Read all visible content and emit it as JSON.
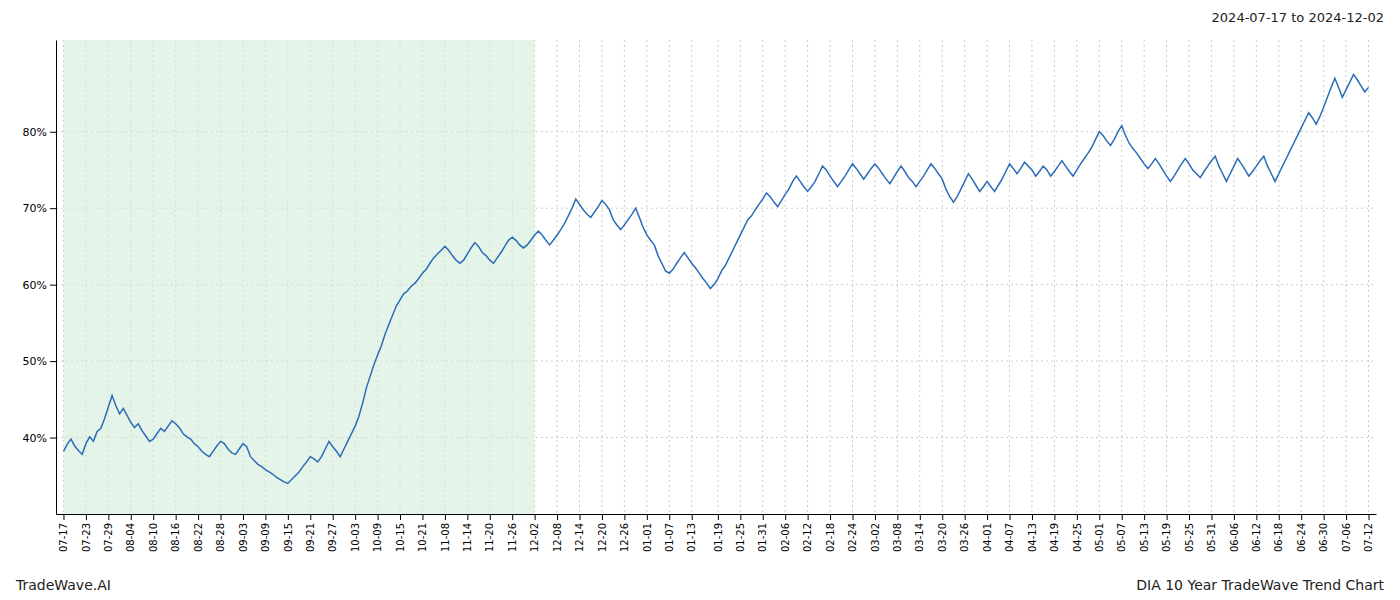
{
  "chart_data": {
    "type": "line",
    "title": "DIA 10 Year TradeWave Trend Chart",
    "subtitle": "2024-07-17 to 2024-12-02",
    "annotations": [
      "TradeWave.AI"
    ],
    "color": "#2b6cb8",
    "grid": true,
    "ylim": [
      30,
      92
    ],
    "yticks": [
      {
        "value": 40,
        "label": "40%"
      },
      {
        "value": 50,
        "label": "50%"
      },
      {
        "value": 60,
        "label": "60%"
      },
      {
        "value": 70,
        "label": "70%"
      },
      {
        "value": 80,
        "label": "80%"
      }
    ],
    "shaded": {
      "from": "07-17",
      "to": "12-02",
      "color": "#d4edda"
    },
    "categories": [
      "07-17",
      null,
      null,
      null,
      null,
      null,
      "07-23",
      null,
      null,
      null,
      null,
      null,
      "07-29",
      null,
      null,
      null,
      null,
      null,
      "08-04",
      null,
      null,
      null,
      null,
      null,
      "08-10",
      null,
      null,
      null,
      null,
      null,
      "08-16",
      null,
      null,
      null,
      null,
      null,
      "08-22",
      null,
      null,
      null,
      null,
      null,
      "08-28",
      null,
      null,
      null,
      null,
      null,
      "09-03",
      null,
      null,
      null,
      null,
      null,
      "09-09",
      null,
      null,
      null,
      null,
      null,
      "09-15",
      null,
      null,
      null,
      null,
      null,
      "09-21",
      null,
      null,
      null,
      null,
      null,
      "09-27",
      null,
      null,
      null,
      null,
      null,
      "10-03",
      null,
      null,
      null,
      null,
      null,
      "10-09",
      null,
      null,
      null,
      null,
      null,
      "10-15",
      null,
      null,
      null,
      null,
      null,
      "10-21",
      null,
      null,
      null,
      null,
      null,
      "11-08",
      null,
      null,
      null,
      null,
      null,
      "11-14",
      null,
      null,
      null,
      null,
      null,
      "11-20",
      null,
      null,
      null,
      null,
      null,
      "11-26",
      null,
      null,
      null,
      null,
      null,
      "12-02",
      null,
      null,
      null,
      null,
      null,
      "12-08",
      null,
      null,
      null,
      null,
      null,
      "12-14",
      null,
      null,
      null,
      null,
      null,
      "12-20",
      null,
      null,
      null,
      null,
      null,
      "12-26",
      null,
      null,
      null,
      null,
      null,
      "01-01",
      null,
      null,
      null,
      null,
      null,
      "01-07",
      null,
      null,
      null,
      null,
      null,
      "01-13",
      null,
      null,
      null,
      null,
      null,
      null,
      "01-19",
      null,
      null,
      null,
      null,
      null,
      "01-25",
      null,
      null,
      null,
      null,
      null,
      "01-31",
      null,
      null,
      null,
      null,
      null,
      "02-06",
      null,
      null,
      null,
      null,
      null,
      "02-12",
      null,
      null,
      null,
      null,
      null,
      "02-18",
      null,
      null,
      null,
      null,
      null,
      "02-24",
      null,
      null,
      null,
      null,
      null,
      "03-02",
      null,
      null,
      null,
      null,
      null,
      "03-08",
      null,
      null,
      null,
      null,
      null,
      "03-14",
      null,
      null,
      null,
      null,
      null,
      "03-20",
      null,
      null,
      null,
      null,
      null,
      "03-26",
      null,
      null,
      null,
      null,
      null,
      "04-01",
      null,
      null,
      null,
      null,
      null,
      "04-07",
      null,
      null,
      null,
      null,
      null,
      "04-13",
      null,
      null,
      null,
      null,
      null,
      "04-19",
      null,
      null,
      null,
      null,
      null,
      "04-25",
      null,
      null,
      null,
      null,
      null,
      "05-01",
      null,
      null,
      null,
      null,
      null,
      "05-07",
      null,
      null,
      null,
      null,
      null,
      "05-13",
      null,
      null,
      null,
      null,
      null,
      "05-19",
      null,
      null,
      null,
      null,
      null,
      "05-25",
      null,
      null,
      null,
      null,
      null,
      "05-31",
      null,
      null,
      null,
      null,
      null,
      "06-06",
      null,
      null,
      null,
      null,
      null,
      "06-12",
      null,
      null,
      null,
      null,
      null,
      "06-18",
      null,
      null,
      null,
      null,
      null,
      "06-24",
      null,
      null,
      null,
      null,
      null,
      "06-30",
      null,
      null,
      null,
      null,
      null,
      "07-06",
      null,
      null,
      null,
      null,
      null,
      "07-12"
    ],
    "values": [
      38.2,
      39.1,
      39.8,
      38.9,
      38.3,
      37.8,
      39.2,
      40.1,
      39.5,
      40.8,
      41.2,
      42.5,
      44.0,
      45.5,
      44.2,
      43.1,
      43.8,
      42.9,
      42.0,
      41.3,
      41.8,
      40.9,
      40.2,
      39.5,
      39.8,
      40.5,
      41.2,
      40.8,
      41.5,
      42.2,
      41.8,
      41.3,
      40.5,
      40.1,
      39.8,
      39.2,
      38.8,
      38.2,
      37.8,
      37.5,
      38.2,
      38.9,
      39.5,
      39.2,
      38.5,
      38.0,
      37.8,
      38.5,
      39.2,
      38.8,
      37.5,
      37.0,
      36.5,
      36.2,
      35.8,
      35.5,
      35.2,
      34.8,
      34.5,
      34.2,
      34.0,
      34.5,
      35.0,
      35.5,
      36.2,
      36.8,
      37.5,
      37.2,
      36.8,
      37.5,
      38.5,
      39.5,
      38.8,
      38.2,
      37.5,
      38.5,
      39.5,
      40.5,
      41.5,
      42.8,
      44.5,
      46.5,
      48.0,
      49.5,
      50.8,
      52.0,
      53.5,
      54.8,
      56.0,
      57.2,
      58.0,
      58.8,
      59.2,
      59.8,
      60.2,
      60.8,
      61.5,
      62.0,
      62.8,
      63.5,
      64.0,
      64.5,
      65.0,
      64.5,
      63.8,
      63.2,
      62.8,
      63.2,
      64.0,
      64.8,
      65.5,
      65.0,
      64.2,
      63.8,
      63.2,
      62.8,
      63.5,
      64.2,
      65.0,
      65.8,
      66.2,
      65.8,
      65.2,
      64.8,
      65.2,
      65.8,
      66.5,
      67.0,
      66.5,
      65.8,
      65.2,
      65.8,
      66.5,
      67.2,
      68.0,
      69.0,
      70.0,
      71.2,
      70.5,
      69.8,
      69.2,
      68.8,
      69.5,
      70.2,
      71.0,
      70.5,
      69.8,
      68.5,
      67.8,
      67.2,
      67.8,
      68.5,
      69.2,
      70.0,
      68.8,
      67.5,
      66.5,
      65.8,
      65.2,
      63.8,
      62.8,
      61.8,
      61.5,
      62.0,
      62.8,
      63.5,
      64.2,
      63.5,
      62.8,
      62.2,
      61.5,
      60.8,
      60.2,
      59.5,
      60.0,
      60.8,
      61.8,
      62.5,
      63.5,
      64.5,
      65.5,
      66.5,
      67.5,
      68.5,
      69.0,
      69.8,
      70.5,
      71.2,
      72.0,
      71.5,
      70.8,
      70.2,
      71.0,
      71.8,
      72.5,
      73.5,
      74.2,
      73.5,
      72.8,
      72.2,
      72.8,
      73.5,
      74.5,
      75.5,
      75.0,
      74.2,
      73.5,
      72.8,
      73.5,
      74.2,
      75.0,
      75.8,
      75.2,
      74.5,
      73.8,
      74.5,
      75.2,
      75.8,
      75.2,
      74.5,
      73.8,
      73.2,
      74.0,
      74.8,
      75.5,
      74.8,
      74.0,
      73.5,
      72.8,
      73.5,
      74.2,
      75.0,
      75.8,
      75.2,
      74.5,
      73.8,
      72.5,
      71.5,
      70.8,
      71.5,
      72.5,
      73.5,
      74.5,
      73.8,
      73.0,
      72.2,
      72.8,
      73.5,
      72.8,
      72.2,
      73.0,
      73.8,
      74.8,
      75.8,
      75.2,
      74.5,
      75.2,
      76.0,
      75.5,
      75.0,
      74.2,
      74.8,
      75.5,
      75.0,
      74.2,
      74.8,
      75.5,
      76.2,
      75.5,
      74.8,
      74.2,
      75.0,
      75.8,
      76.5,
      77.2,
      78.0,
      79.0,
      80.0,
      79.5,
      78.8,
      78.2,
      79.0,
      80.0,
      80.8,
      79.5,
      78.5,
      77.8,
      77.2,
      76.5,
      75.8,
      75.2,
      75.8,
      76.5,
      75.8,
      75.0,
      74.2,
      73.5,
      74.2,
      75.0,
      75.8,
      76.5,
      75.8,
      75.0,
      74.5,
      74.0,
      74.8,
      75.5,
      76.2,
      76.8,
      75.5,
      74.5,
      73.5,
      74.5,
      75.5,
      76.5,
      75.8,
      75.0,
      74.2,
      74.8,
      75.5,
      76.2,
      76.8,
      75.5,
      74.5,
      73.5,
      74.5,
      75.5,
      76.5,
      77.5,
      78.5,
      79.5,
      80.5,
      81.5,
      82.5,
      81.8,
      81.0,
      82.0,
      83.2,
      84.5,
      85.8,
      87.0,
      85.8,
      84.5,
      85.5,
      86.5,
      87.5,
      86.8,
      86.0,
      85.2,
      85.8
    ]
  }
}
